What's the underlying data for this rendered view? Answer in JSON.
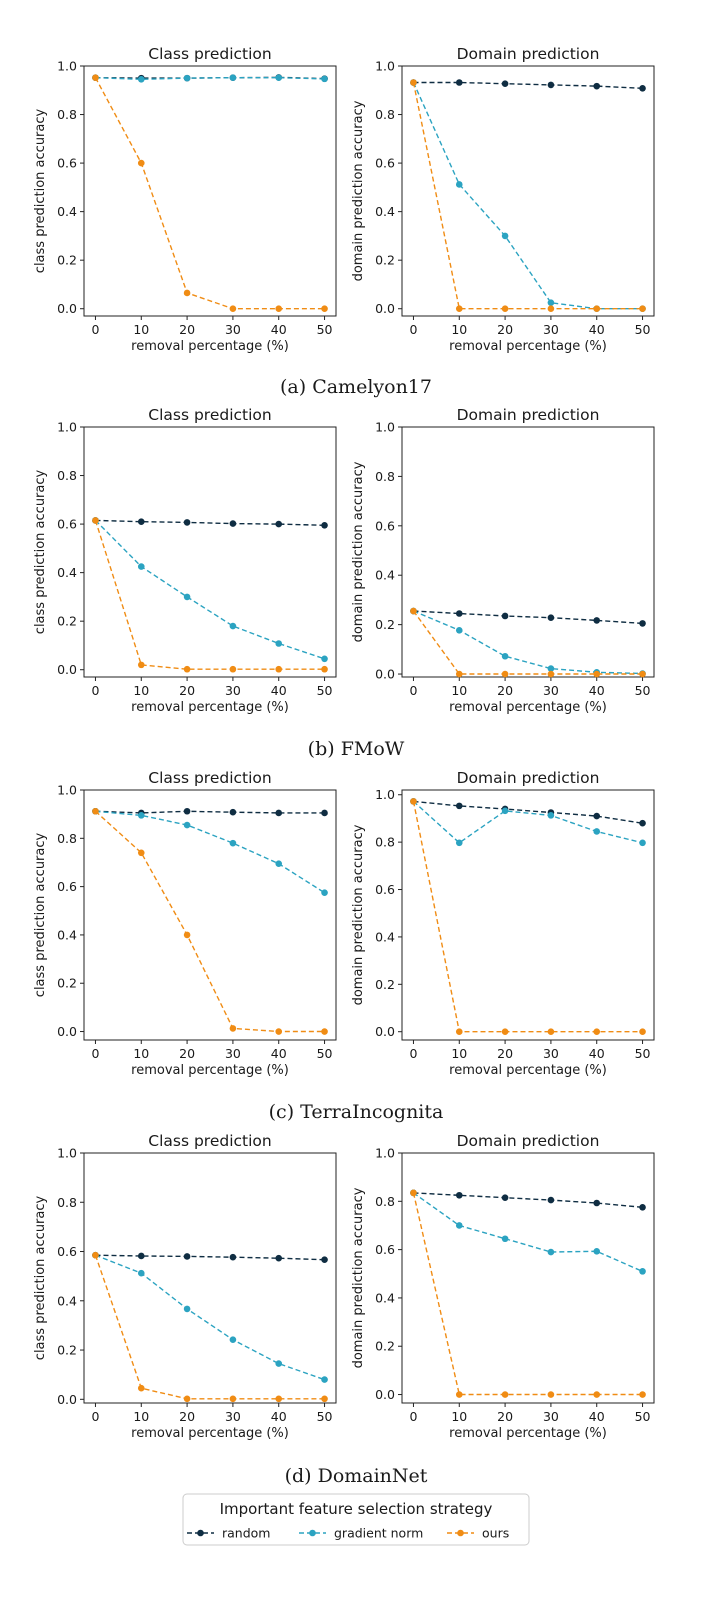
{
  "colors": {
    "random": "#0f2d42",
    "gradient_norm": "#2ba3c1",
    "ours": "#f08c14"
  },
  "legend": {
    "title": "Important feature selection strategy",
    "entries": [
      "random",
      "gradient norm",
      "ours"
    ]
  },
  "chart_data": [
    {
      "type": "line",
      "group": 0,
      "column": 0,
      "title": "Class prediction",
      "xlabel": "removal percentage (%)",
      "ylabel": "class prediction accuracy",
      "x": [
        0,
        10,
        20,
        30,
        40,
        50
      ],
      "ylim": [
        -0.03,
        1.0
      ],
      "xticks": [
        "0",
        "10",
        "20",
        "30",
        "40",
        "50"
      ],
      "yticks": [
        "0.0",
        "0.2",
        "0.4",
        "0.6",
        "0.8",
        "1.0"
      ],
      "series": [
        {
          "name": "random",
          "values": [
            0.952,
            0.95,
            0.95,
            0.952,
            0.953,
            0.948
          ]
        },
        {
          "name": "gradient norm",
          "values": [
            0.952,
            0.945,
            0.95,
            0.952,
            0.952,
            0.947
          ]
        },
        {
          "name": "ours",
          "values": [
            0.952,
            0.6,
            0.065,
            0.0,
            0.0,
            0.0
          ]
        }
      ]
    },
    {
      "type": "line",
      "group": 0,
      "column": 1,
      "title": "Domain prediction",
      "xlabel": "removal percentage (%)",
      "ylabel": "domain prediction accuracy",
      "x": [
        0,
        10,
        20,
        30,
        40,
        50
      ],
      "ylim": [
        -0.03,
        1.0
      ],
      "xticks": [
        "0",
        "10",
        "20",
        "30",
        "40",
        "50"
      ],
      "yticks": [
        "0.0",
        "0.2",
        "0.4",
        "0.6",
        "0.8",
        "1.0"
      ],
      "series": [
        {
          "name": "random",
          "values": [
            0.932,
            0.932,
            0.927,
            0.922,
            0.917,
            0.908
          ]
        },
        {
          "name": "gradient norm",
          "values": [
            0.932,
            0.512,
            0.3,
            0.025,
            0.0,
            0.0
          ]
        },
        {
          "name": "ours",
          "values": [
            0.932,
            0.0,
            0.0,
            0.0,
            0.0,
            0.0
          ]
        }
      ]
    },
    {
      "type": "line",
      "group": 1,
      "column": 0,
      "title": "Class prediction",
      "xlabel": "removal percentage (%)",
      "ylabel": "class prediction accuracy",
      "x": [
        0,
        10,
        20,
        30,
        40,
        50
      ],
      "ylim": [
        -0.03,
        1.0
      ],
      "xticks": [
        "0",
        "10",
        "20",
        "30",
        "40",
        "50"
      ],
      "yticks": [
        "0.0",
        "0.2",
        "0.4",
        "0.6",
        "0.8",
        "1.0"
      ],
      "series": [
        {
          "name": "random",
          "values": [
            0.615,
            0.61,
            0.607,
            0.602,
            0.6,
            0.595
          ]
        },
        {
          "name": "gradient norm",
          "values": [
            0.615,
            0.425,
            0.3,
            0.18,
            0.108,
            0.045
          ]
        },
        {
          "name": "ours",
          "values": [
            0.615,
            0.02,
            0.002,
            0.002,
            0.002,
            0.002
          ]
        }
      ]
    },
    {
      "type": "line",
      "group": 1,
      "column": 1,
      "title": "Domain prediction",
      "xlabel": "removal percentage (%)",
      "ylabel": "domain prediction accuracy",
      "x": [
        0,
        10,
        20,
        30,
        40,
        50
      ],
      "ylim": [
        -0.012,
        1.0
      ],
      "xticks": [
        "0",
        "10",
        "20",
        "30",
        "40",
        "50"
      ],
      "yticks": [
        "0.0",
        "0.2",
        "0.4",
        "0.6",
        "0.8",
        "1.0"
      ],
      "series": [
        {
          "name": "random",
          "values": [
            0.255,
            0.245,
            0.235,
            0.228,
            0.217,
            0.205
          ]
        },
        {
          "name": "gradient norm",
          "values": [
            0.255,
            0.177,
            0.072,
            0.022,
            0.007,
            0.002
          ]
        },
        {
          "name": "ours",
          "values": [
            0.255,
            0.0,
            0.0,
            0.0,
            0.0,
            0.0
          ]
        }
      ]
    },
    {
      "type": "line",
      "group": 2,
      "column": 0,
      "title": "Class prediction",
      "xlabel": "removal percentage (%)",
      "ylabel": "class prediction accuracy",
      "x": [
        0,
        10,
        20,
        30,
        40,
        50
      ],
      "ylim": [
        -0.035,
        1.0
      ],
      "xticks": [
        "0",
        "10",
        "20",
        "30",
        "40",
        "50"
      ],
      "yticks": [
        "0.0",
        "0.2",
        "0.4",
        "0.6",
        "0.8",
        "1.0"
      ],
      "series": [
        {
          "name": "random",
          "values": [
            0.912,
            0.905,
            0.912,
            0.908,
            0.905,
            0.905
          ]
        },
        {
          "name": "gradient norm",
          "values": [
            0.912,
            0.895,
            0.855,
            0.78,
            0.695,
            0.575
          ]
        },
        {
          "name": "ours",
          "values": [
            0.912,
            0.74,
            0.4,
            0.013,
            0.0,
            0.0
          ]
        }
      ]
    },
    {
      "type": "line",
      "group": 2,
      "column": 1,
      "title": "Domain prediction",
      "xlabel": "removal percentage (%)",
      "ylabel": "domain prediction accuracy",
      "x": [
        0,
        10,
        20,
        30,
        40,
        50
      ],
      "ylim": [
        -0.035,
        1.02
      ],
      "xticks": [
        "0",
        "10",
        "20",
        "30",
        "40",
        "50"
      ],
      "yticks": [
        "0.0",
        "0.2",
        "0.4",
        "0.6",
        "0.8",
        "1.0"
      ],
      "series": [
        {
          "name": "random",
          "values": [
            0.972,
            0.953,
            0.94,
            0.925,
            0.91,
            0.88
          ]
        },
        {
          "name": "gradient norm",
          "values": [
            0.972,
            0.797,
            0.932,
            0.913,
            0.845,
            0.797
          ]
        },
        {
          "name": "ours",
          "values": [
            0.972,
            0.0,
            0.0,
            0.0,
            0.0,
            0.0
          ]
        }
      ]
    },
    {
      "type": "line",
      "group": 3,
      "column": 0,
      "title": "Class prediction",
      "xlabel": "removal percentage (%)",
      "ylabel": "class prediction accuracy",
      "x": [
        0,
        10,
        20,
        30,
        40,
        50
      ],
      "ylim": [
        -0.015,
        1.0
      ],
      "xticks": [
        "0",
        "10",
        "20",
        "30",
        "40",
        "50"
      ],
      "yticks": [
        "0.0",
        "0.2",
        "0.4",
        "0.6",
        "0.8",
        "1.0"
      ],
      "series": [
        {
          "name": "random",
          "values": [
            0.585,
            0.582,
            0.58,
            0.577,
            0.573,
            0.567
          ]
        },
        {
          "name": "gradient norm",
          "values": [
            0.585,
            0.512,
            0.367,
            0.242,
            0.145,
            0.08
          ]
        },
        {
          "name": "ours",
          "values": [
            0.585,
            0.045,
            0.002,
            0.002,
            0.002,
            0.002
          ]
        }
      ]
    },
    {
      "type": "line",
      "group": 3,
      "column": 1,
      "title": "Domain prediction",
      "xlabel": "removal percentage (%)",
      "ylabel": "domain prediction accuracy",
      "x": [
        0,
        10,
        20,
        30,
        40,
        50
      ],
      "ylim": [
        -0.035,
        1.0
      ],
      "xticks": [
        "0",
        "10",
        "20",
        "30",
        "40",
        "50"
      ],
      "yticks": [
        "0.0",
        "0.2",
        "0.4",
        "0.6",
        "0.8",
        "1.0"
      ],
      "series": [
        {
          "name": "random",
          "values": [
            0.835,
            0.825,
            0.815,
            0.805,
            0.793,
            0.775
          ]
        },
        {
          "name": "gradient norm",
          "values": [
            0.835,
            0.7,
            0.645,
            0.59,
            0.593,
            0.51
          ]
        },
        {
          "name": "ours",
          "values": [
            0.835,
            0.0,
            0.0,
            0.0,
            0.0,
            0.0
          ]
        }
      ]
    }
  ],
  "captions": [
    "(a) Camelyon17",
    "(b) FMoW",
    "(c) TerraIncognita",
    "(d) DomainNet"
  ]
}
